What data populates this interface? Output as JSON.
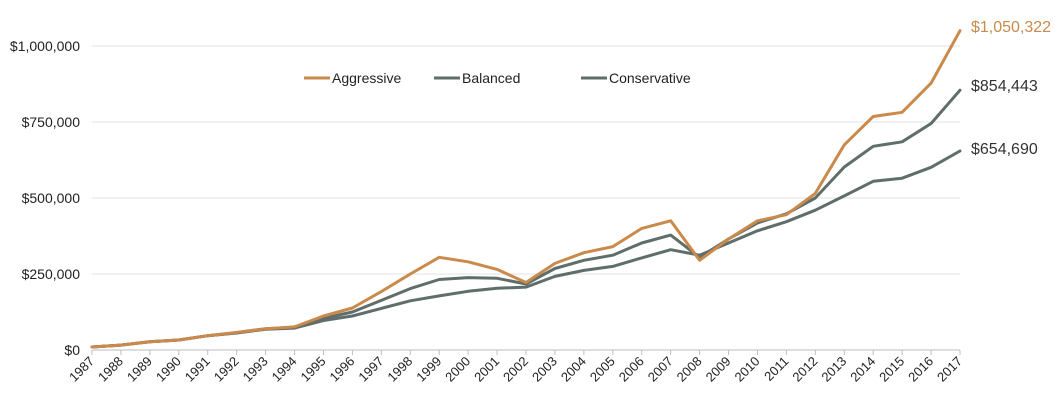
{
  "chart_data": {
    "type": "line",
    "title": "",
    "xlabel": "",
    "ylabel": "",
    "ylim": [
      0,
      1000000
    ],
    "y_ticks": [
      {
        "value": 0,
        "label": "$0"
      },
      {
        "value": 250000,
        "label": "$250,000"
      },
      {
        "value": 500000,
        "label": "$500,000"
      },
      {
        "value": 750000,
        "label": "$750,000"
      },
      {
        "value": 1000000,
        "label": "$1,000,000"
      }
    ],
    "grid": true,
    "legend": "top",
    "x": [
      "1987",
      "1988",
      "1989",
      "1990",
      "1991",
      "1992",
      "1993",
      "1994",
      "1995",
      "1996",
      "1997",
      "1998",
      "1999",
      "2000",
      "2001",
      "2002",
      "2003",
      "2004",
      "2005",
      "2006",
      "2007",
      "2008",
      "2009",
      "2010",
      "2011",
      "2012",
      "2013",
      "2014",
      "2015",
      "2016",
      "2017"
    ],
    "series": [
      {
        "name": "Aggressive",
        "color": "#c98a4b",
        "values": [
          10000,
          16000,
          27000,
          33000,
          47000,
          58000,
          70000,
          76000,
          112000,
          138000,
          192000,
          250000,
          305000,
          290000,
          265000,
          222000,
          285000,
          320000,
          340000,
          400000,
          425000,
          295000,
          365000,
          425000,
          445000,
          515000,
          675000,
          768000,
          782000,
          878000,
          1050322
        ],
        "end_label": "$1,050,322"
      },
      {
        "name": "Balanced",
        "color": "#5f6d6b",
        "values": [
          10000,
          16000,
          27000,
          33000,
          47000,
          57000,
          70000,
          75000,
          104000,
          125000,
          163000,
          202000,
          232000,
          238000,
          236000,
          217000,
          268000,
          295000,
          312000,
          352000,
          378000,
          305000,
          365000,
          418000,
          448000,
          500000,
          602000,
          670000,
          685000,
          745000,
          854443
        ],
        "end_label": "$854,443"
      },
      {
        "name": "Conservative",
        "color": "#5f6d6b",
        "values": [
          10000,
          16000,
          27000,
          33000,
          47000,
          56000,
          68000,
          72000,
          97000,
          112000,
          137000,
          162000,
          178000,
          193000,
          203000,
          207000,
          242000,
          262000,
          275000,
          303000,
          330000,
          312000,
          352000,
          392000,
          422000,
          460000,
          507000,
          555000,
          565000,
          601000,
          654690
        ],
        "end_label": "$654,690"
      }
    ]
  }
}
